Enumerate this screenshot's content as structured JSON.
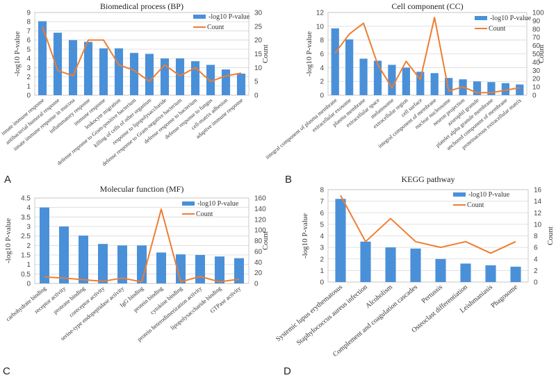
{
  "colors": {
    "bar": "#4a90d9",
    "line": "#ed7d31",
    "grid": "#d9d9d9",
    "axis": "#bfbfbf"
  },
  "chart_data": [
    {
      "id": "A",
      "panel_letter": "A",
      "type": "bar",
      "title": "Biomedical process (BP)",
      "ylabel": "-log10 P-value",
      "y2label": "Count",
      "ylim": [
        0,
        9
      ],
      "ystep": 1,
      "y2lim": [
        0,
        30
      ],
      "y2step": 5,
      "legend": [
        "-log10 P-value",
        "Count"
      ],
      "legend_position": "top-right",
      "grid": true,
      "categories": [
        "innate immune response",
        "antibacterial humoral response",
        "innate immune response in mucosa",
        "inflammatory response",
        "immune response",
        "leukocyte migration",
        "defense response to Gram-positive bacterium",
        "killing of cells of other organism",
        "response to lipopolysaccharide",
        "defense response to Gram-negative bacterium",
        "defense response to bacterium",
        "defense response to fungus",
        "cell-matrix adhesion",
        "adaptive immune response"
      ],
      "series": [
        {
          "name": "-log10 P-value",
          "type": "bar",
          "axis": "left",
          "values": [
            8.05,
            6.8,
            6.0,
            5.8,
            5.1,
            5.1,
            4.6,
            4.5,
            4.0,
            4.0,
            3.7,
            3.3,
            2.8,
            2.35
          ]
        },
        {
          "name": "Count",
          "type": "line",
          "axis": "right",
          "values": [
            25,
            9,
            7,
            20,
            20,
            11,
            9,
            5,
            11,
            7,
            10,
            5,
            7,
            8
          ]
        }
      ]
    },
    {
      "id": "B",
      "panel_letter": "B",
      "type": "bar",
      "title": "Cell component (CC)",
      "ylabel": "-log10 P-value",
      "y2label": "Count",
      "ylim": [
        0,
        12
      ],
      "ystep": 2,
      "y2lim": [
        0,
        100
      ],
      "y2step": 10,
      "legend": [
        "-log10 P-value",
        "Count"
      ],
      "legend_position": "top-right",
      "grid": true,
      "categories": [
        "integral component of plasma membrane",
        "extracellular exosome",
        "plasma membrane",
        "extracellular space",
        "melanosome",
        "extracellular region",
        "cell surface",
        "integral component of membrane",
        "nuclear nucleosome",
        "neuron projection",
        "azurophil granule",
        "platelet alpha granule membrane",
        "anchored component of membrane",
        "proteinaceous extracellular matrix"
      ],
      "series": [
        {
          "name": "-log10 P-value",
          "type": "bar",
          "axis": "left",
          "values": [
            9.7,
            8.1,
            5.3,
            5.0,
            4.4,
            4.0,
            3.4,
            3.2,
            2.5,
            2.3,
            2.0,
            1.9,
            1.75,
            1.55
          ]
        },
        {
          "name": "Count",
          "type": "line",
          "axis": "right",
          "values": [
            51,
            74,
            87,
            37,
            9,
            41,
            19,
            94,
            5,
            10,
            3,
            3,
            6,
            9
          ]
        }
      ]
    },
    {
      "id": "C",
      "panel_letter": "C",
      "type": "bar",
      "title": "Molecular function (MF)",
      "ylabel": "-log10  P-value",
      "y2label": "Count",
      "ylim": [
        0,
        4.5
      ],
      "ystep": 0.5,
      "y2lim": [
        0,
        160
      ],
      "y2step": 20,
      "legend": [
        "-log10 P-value",
        "Count"
      ],
      "legend_position": "top-right",
      "grid": true,
      "categories": [
        "carbohydrate binding",
        "receptor activity",
        "protease binding",
        "coreceptor activity",
        "serine-type endopeptidase activity",
        "IgG binding",
        "protein binding",
        "cytokine binding",
        "protein heterodimerization activity",
        "lipopolysaccharide binding",
        "GTPase activity"
      ],
      "series": [
        {
          "name": "-log10 P-value",
          "type": "bar",
          "axis": "left",
          "values": [
            4.0,
            3.0,
            2.52,
            2.08,
            2.0,
            2.0,
            1.63,
            1.53,
            1.5,
            1.42,
            1.33
          ]
        },
        {
          "name": "Count",
          "type": "line",
          "axis": "right",
          "values": [
            12,
            10,
            7,
            4,
            10,
            3,
            139,
            3,
            13,
            3,
            8
          ]
        }
      ]
    },
    {
      "id": "D",
      "panel_letter": "D",
      "type": "bar",
      "title": "KEGG pathway",
      "ylabel": "-log10  P-value",
      "y2label": "Count",
      "ylim": [
        0,
        8
      ],
      "ystep": 1,
      "y2lim": [
        0,
        16
      ],
      "y2step": 2,
      "legend": [
        "-log10 P-value",
        "Count"
      ],
      "legend_position": "top-right",
      "grid": true,
      "categories": [
        "Systemic lupus erythematosus",
        "Staphylococcus aureus infection",
        "Alcoholism",
        "Complement and coagulation cascades",
        "Pertussis",
        "Osteoclast differentiation",
        "Leishmaniasis",
        "Phagosome"
      ],
      "series": [
        {
          "name": "-log10 P-value",
          "type": "bar",
          "axis": "left",
          "values": [
            7.2,
            3.5,
            3.0,
            2.9,
            2.0,
            1.6,
            1.45,
            1.33
          ]
        },
        {
          "name": "Count",
          "type": "line",
          "axis": "right",
          "values": [
            15,
            7,
            11,
            7,
            6,
            7,
            5,
            7
          ]
        }
      ]
    }
  ]
}
